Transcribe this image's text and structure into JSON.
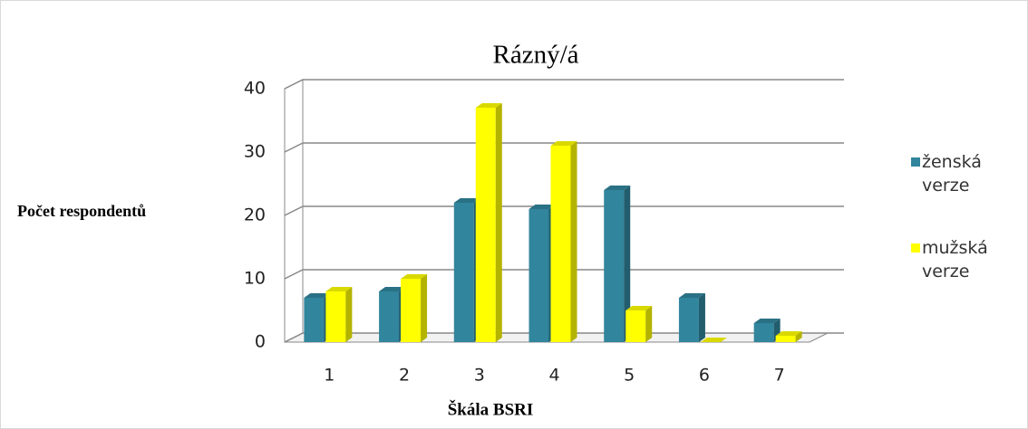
{
  "chart_data": {
    "type": "bar",
    "title": "Rázný/á",
    "x_label": "Škála BSRI",
    "y_label": "Počet respondentů",
    "categories": [
      "1",
      "2",
      "3",
      "4",
      "5",
      "6",
      "7"
    ],
    "series": [
      {
        "name": "ženská verze",
        "color": "#31859c",
        "values": [
          7,
          8,
          22,
          21,
          24,
          7,
          3
        ]
      },
      {
        "name": "mužská verze",
        "color": "#ffff00",
        "values": [
          8,
          10,
          37,
          31,
          5,
          0,
          1
        ]
      }
    ],
    "ylim": [
      0,
      40
    ],
    "yticks": [
      0,
      10,
      20,
      30,
      40
    ],
    "grid": true,
    "legend": "right"
  }
}
